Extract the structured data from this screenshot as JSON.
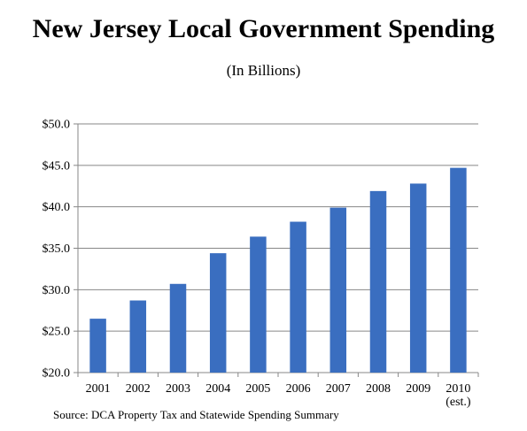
{
  "title": "New Jersey Local Government Spending",
  "subtitle": "(In Billions)",
  "source": "Source: DCA Property Tax and Statewide Spending Summary",
  "colors": {
    "bar": "#3a6ec0",
    "grid": "#878787",
    "axis": "#878787",
    "text": "#000000"
  },
  "chart_data": {
    "type": "bar",
    "title": "New Jersey Local Government Spending",
    "subtitle": "(In Billions)",
    "categories": [
      "2001",
      "2002",
      "2003",
      "2004",
      "2005",
      "2006",
      "2007",
      "2008",
      "2009",
      "2010"
    ],
    "category_sublabels": [
      "",
      "",
      "",
      "",
      "",
      "",
      "",
      "",
      "",
      "(est.)"
    ],
    "values": [
      26.5,
      28.7,
      30.7,
      34.4,
      36.4,
      38.2,
      39.9,
      41.9,
      42.8,
      44.7
    ],
    "ylim": [
      20,
      50
    ],
    "yticks": [
      20,
      25,
      30,
      35,
      40,
      45,
      50
    ],
    "ytick_labels": [
      "$20.0",
      "$25.0",
      "$30.0",
      "$35.0",
      "$40.0",
      "$45.0",
      "$50.0"
    ],
    "grid": true,
    "legend": "none"
  }
}
